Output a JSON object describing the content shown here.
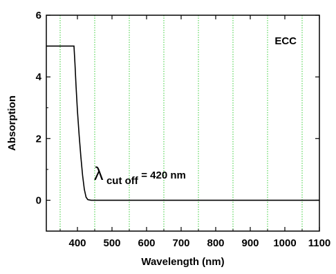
{
  "chart_data": {
    "type": "line",
    "title": "",
    "xlabel": "Wavelength (nm)",
    "ylabel": "Absorption",
    "xlim": [
      310,
      1100
    ],
    "ylim": [
      -1,
      6
    ],
    "x_ticks": [
      400,
      500,
      600,
      700,
      800,
      900,
      1000,
      1100
    ],
    "x_tick_labels": [
      "400",
      "500",
      "600",
      "700",
      "800",
      "900",
      "1000",
      "1100"
    ],
    "y_ticks": [
      0,
      2,
      4,
      6
    ],
    "y_tick_labels": [
      "0",
      "2",
      "4",
      "6"
    ],
    "grid": {
      "vertical_at": [
        350,
        450,
        550,
        650,
        750,
        850,
        950,
        1050
      ],
      "color": "#33cc33",
      "style": "dotted"
    },
    "legend_label": "ECC",
    "legend_position": "top-right",
    "annotation": {
      "symbol": "λ",
      "subscript": "cut off",
      "text": " = 420 nm"
    },
    "series": [
      {
        "color": "#000000",
        "x": [
          310,
          390,
          393,
          396,
          400,
          405,
          410,
          415,
          420,
          425,
          430,
          440,
          460,
          500,
          600,
          800,
          1100
        ],
        "y": [
          5.0,
          5.0,
          4.4,
          3.7,
          2.9,
          2.1,
          1.4,
          0.8,
          0.35,
          0.1,
          0.02,
          0.0,
          0.0,
          0.0,
          0.0,
          0.0,
          0.0
        ]
      }
    ]
  }
}
